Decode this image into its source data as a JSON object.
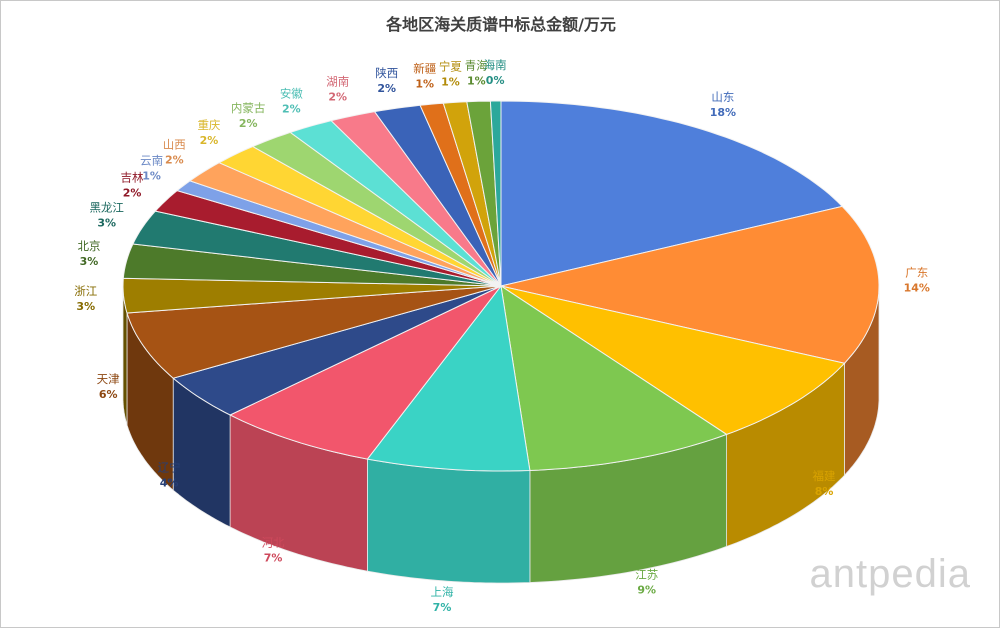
{
  "chart_data": {
    "type": "pie",
    "style": "3d",
    "title": "各地区海关质谱中标总金额/万元",
    "start": "top, clockwise",
    "categories": [
      "山东",
      "广东",
      "福建",
      "江苏",
      "上海",
      "河北",
      "辽宁",
      "天津",
      "浙江",
      "北京",
      "黑龙江",
      "吉林",
      "云南",
      "山西",
      "重庆",
      "内蒙古",
      "安徽",
      "湖南",
      "陕西",
      "新疆",
      "宁夏",
      "青海",
      "海南"
    ],
    "values": [
      18,
      14,
      8,
      9,
      7,
      7,
      4,
      6,
      3,
      3,
      3,
      2,
      1,
      2,
      2,
      2,
      2,
      2,
      2,
      1,
      1,
      1,
      0
    ],
    "labels": [
      "18%",
      "14%",
      "8%",
      "9%",
      "7%",
      "7%",
      "4%",
      "6%",
      "3%",
      "3%",
      "3%",
      "2%",
      "1%",
      "2%",
      "2%",
      "2%",
      "2%",
      "2%",
      "2%",
      "1%",
      "1%",
      "1%",
      "0%"
    ],
    "colors": [
      "#4f7fdb",
      "#ff8c34",
      "#ffc000",
      "#7ec850",
      "#3ad3c5",
      "#f2566c",
      "#2e4a8a",
      "#a65314",
      "#9e7e00",
      "#4d7a2a",
      "#217a70",
      "#a81c2e",
      "#7ea1e8",
      "#ffa35c",
      "#ffd633",
      "#9ed670",
      "#5ce0d4",
      "#f87a8a",
      "#3a63b8",
      "#e0701a",
      "#d1a30b",
      "#6ba33a",
      "#2ca89b"
    ],
    "legend": "none"
  },
  "watermark": "antpedia"
}
